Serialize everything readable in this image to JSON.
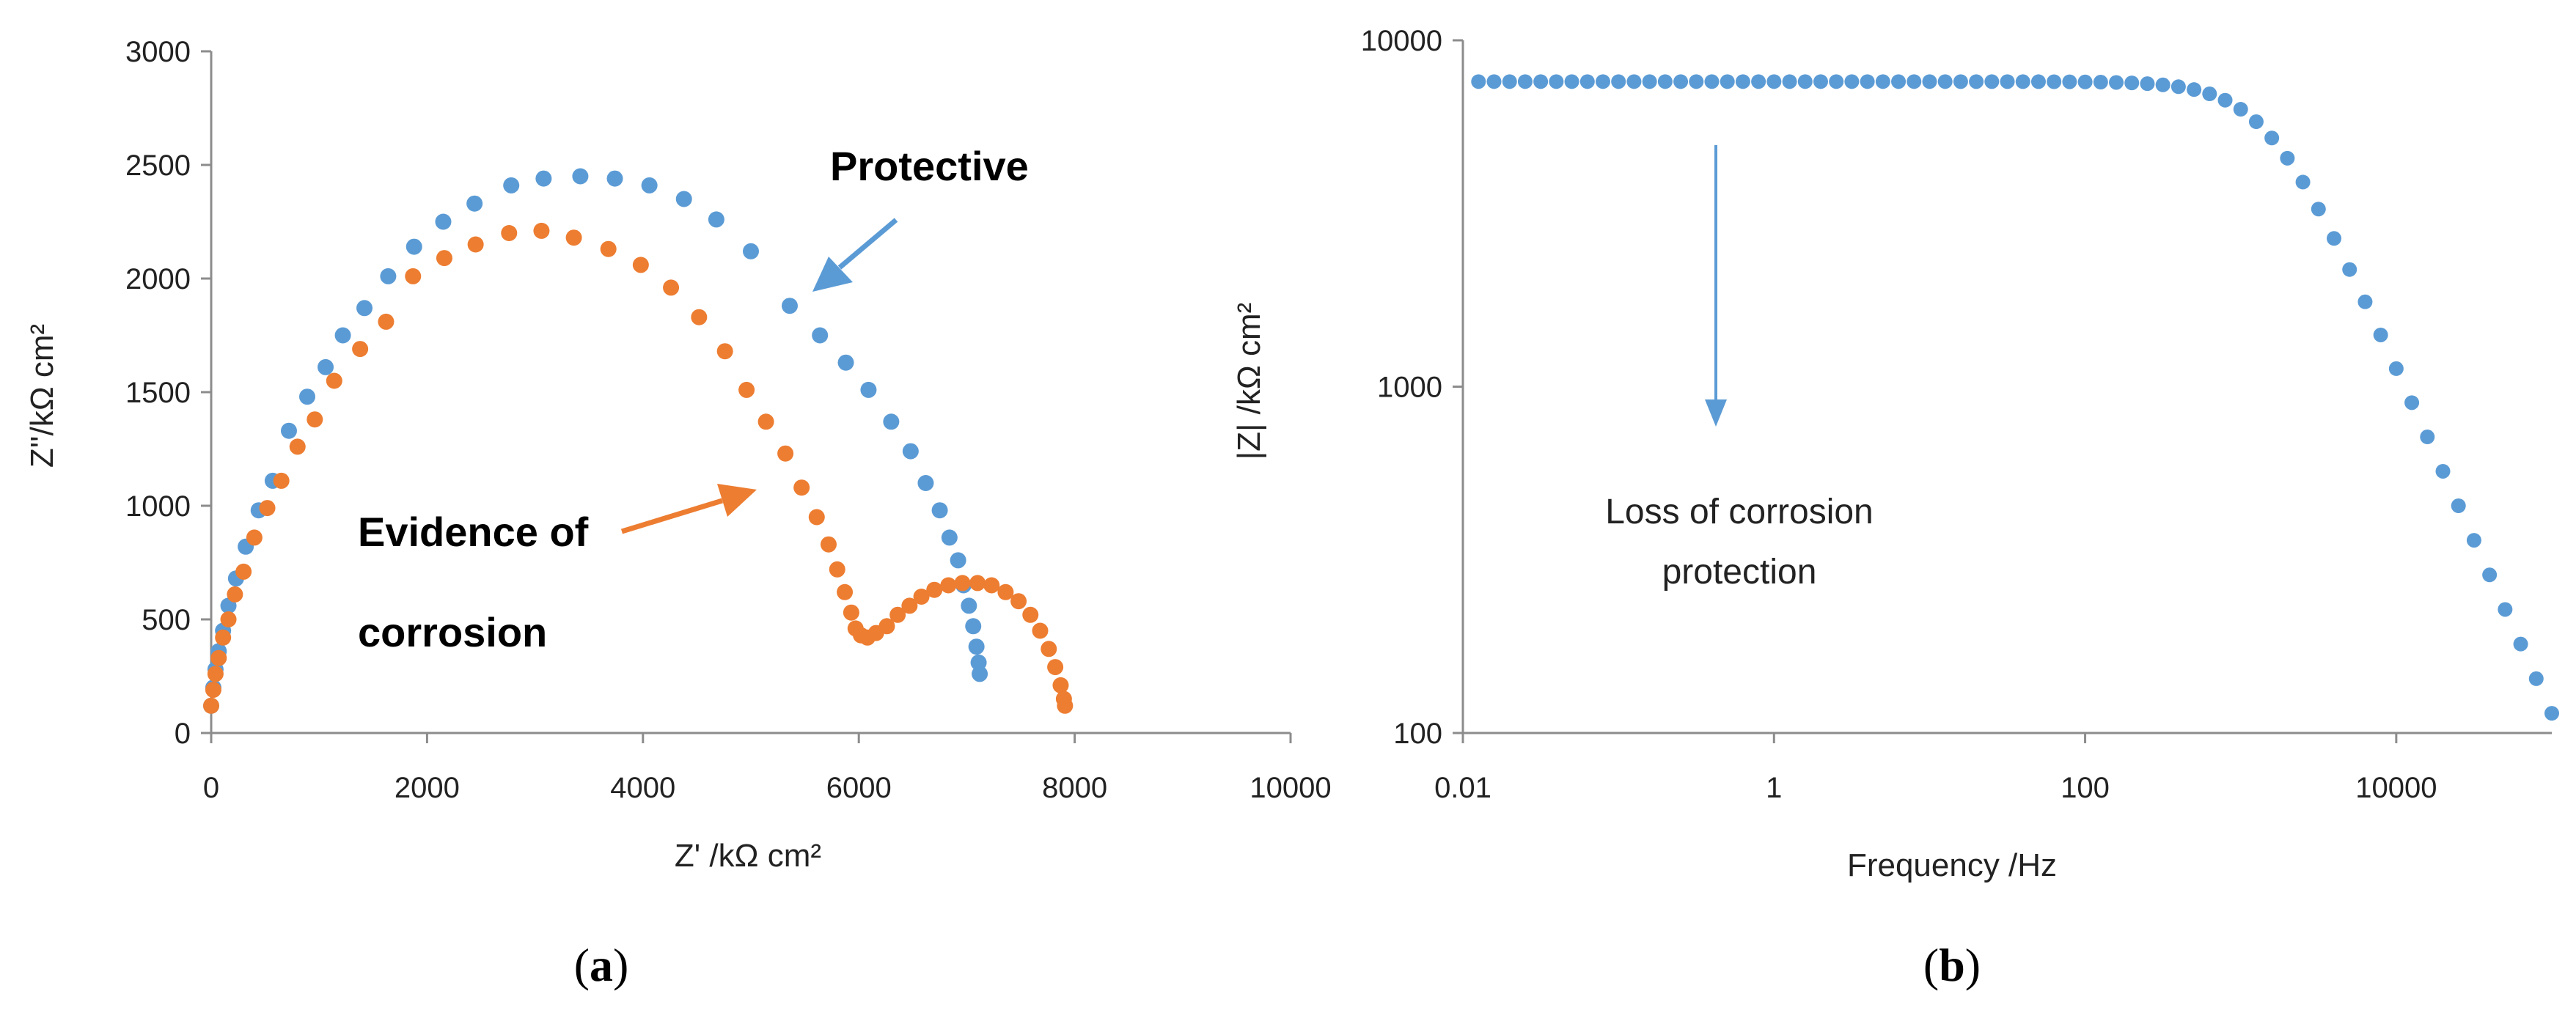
{
  "chart_data": [
    {
      "type": "scatter",
      "panel_label": {
        "open": "(",
        "letter": "a",
        "close": ")"
      },
      "xlabel": "Z' /kΩ cm²",
      "ylabel": "Z''/kΩ cm²",
      "xlim": [
        0,
        10000
      ],
      "ylim": [
        0,
        3000
      ],
      "xticks": [
        "0",
        "2000",
        "4000",
        "6000",
        "8000",
        "10000"
      ],
      "yticks": [
        "0",
        "500",
        "1000",
        "1500",
        "2000",
        "2500",
        "3000"
      ],
      "grid": false,
      "series": [
        {
          "name": "Protective",
          "color": "#5B9BD5",
          "points": [
            [
              0,
              120
            ],
            [
              20,
              200
            ],
            [
              40,
              280
            ],
            [
              70,
              360
            ],
            [
              110,
              450
            ],
            [
              160,
              560
            ],
            [
              230,
              680
            ],
            [
              320,
              820
            ],
            [
              440,
              980
            ],
            [
              570,
              1110
            ],
            [
              720,
              1330
            ],
            [
              890,
              1480
            ],
            [
              1060,
              1610
            ],
            [
              1220,
              1750
            ],
            [
              1420,
              1870
            ],
            [
              1640,
              2010
            ],
            [
              1880,
              2140
            ],
            [
              2150,
              2250
            ],
            [
              2440,
              2330
            ],
            [
              2780,
              2410
            ],
            [
              3080,
              2440
            ],
            [
              3420,
              2450
            ],
            [
              3740,
              2440
            ],
            [
              4060,
              2410
            ],
            [
              4380,
              2350
            ],
            [
              4680,
              2260
            ],
            [
              5000,
              2120
            ],
            [
              5360,
              1880
            ],
            [
              5640,
              1750
            ],
            [
              5880,
              1630
            ],
            [
              6090,
              1510
            ],
            [
              6300,
              1370
            ],
            [
              6480,
              1240
            ],
            [
              6620,
              1100
            ],
            [
              6750,
              980
            ],
            [
              6840,
              860
            ],
            [
              6920,
              760
            ],
            [
              6970,
              650
            ],
            [
              7020,
              560
            ],
            [
              7060,
              470
            ],
            [
              7090,
              380
            ],
            [
              7110,
              310
            ],
            [
              7120,
              260
            ]
          ]
        },
        {
          "name": "Evidence of corrosion",
          "color": "#ED7D31",
          "points": [
            [
              0,
              120
            ],
            [
              20,
              190
            ],
            [
              40,
              260
            ],
            [
              70,
              330
            ],
            [
              110,
              420
            ],
            [
              160,
              500
            ],
            [
              220,
              610
            ],
            [
              300,
              710
            ],
            [
              400,
              860
            ],
            [
              520,
              990
            ],
            [
              650,
              1110
            ],
            [
              800,
              1260
            ],
            [
              960,
              1380
            ],
            [
              1140,
              1550
            ],
            [
              1380,
              1690
            ],
            [
              1620,
              1810
            ],
            [
              1870,
              2010
            ],
            [
              2160,
              2090
            ],
            [
              2450,
              2150
            ],
            [
              2760,
              2200
            ],
            [
              3060,
              2210
            ],
            [
              3360,
              2180
            ],
            [
              3680,
              2130
            ],
            [
              3980,
              2060
            ],
            [
              4260,
              1960
            ],
            [
              4520,
              1830
            ],
            [
              4760,
              1680
            ],
            [
              4960,
              1510
            ],
            [
              5140,
              1370
            ],
            [
              5320,
              1230
            ],
            [
              5470,
              1080
            ],
            [
              5610,
              950
            ],
            [
              5720,
              830
            ],
            [
              5800,
              720
            ],
            [
              5870,
              620
            ],
            [
              5930,
              530
            ],
            [
              5970,
              460
            ],
            [
              6020,
              430
            ],
            [
              6080,
              420
            ],
            [
              6160,
              440
            ],
            [
              6260,
              470
            ],
            [
              6360,
              520
            ],
            [
              6470,
              560
            ],
            [
              6580,
              600
            ],
            [
              6700,
              630
            ],
            [
              6830,
              650
            ],
            [
              6960,
              660
            ],
            [
              7100,
              660
            ],
            [
              7230,
              650
            ],
            [
              7360,
              620
            ],
            [
              7480,
              580
            ],
            [
              7590,
              520
            ],
            [
              7680,
              450
            ],
            [
              7760,
              370
            ],
            [
              7820,
              290
            ],
            [
              7870,
              210
            ],
            [
              7900,
              150
            ],
            [
              7910,
              120
            ]
          ]
        }
      ],
      "annotations": {
        "protective": "Protective",
        "evidence_line1": "Evidence of",
        "evidence_line2": "corrosion"
      }
    },
    {
      "type": "scatter",
      "panel_label": {
        "open": "(",
        "letter": "b",
        "close": ")"
      },
      "xlabel": "Frequency /Hz",
      "ylabel": "|Z| /kΩ cm²",
      "xscale": "log",
      "yscale": "log",
      "xlim": [
        0.01,
        100000
      ],
      "ylim": [
        100,
        10000
      ],
      "xticks": [
        "0.01",
        "1",
        "100",
        "10000"
      ],
      "yticks": [
        "100",
        "1000",
        "10000"
      ],
      "grid": false,
      "series": [
        {
          "name": "|Z|",
          "color": "#5B9BD5",
          "model": {
            "z_low": 7600,
            "f_corner": 1500,
            "slope": -1,
            "f_min": 0.0126,
            "f_max": 100000,
            "points_per_decade": 10
          }
        }
      ],
      "annotations": {
        "loss_line1": "Loss of corrosion",
        "loss_line2": "protection"
      }
    }
  ]
}
